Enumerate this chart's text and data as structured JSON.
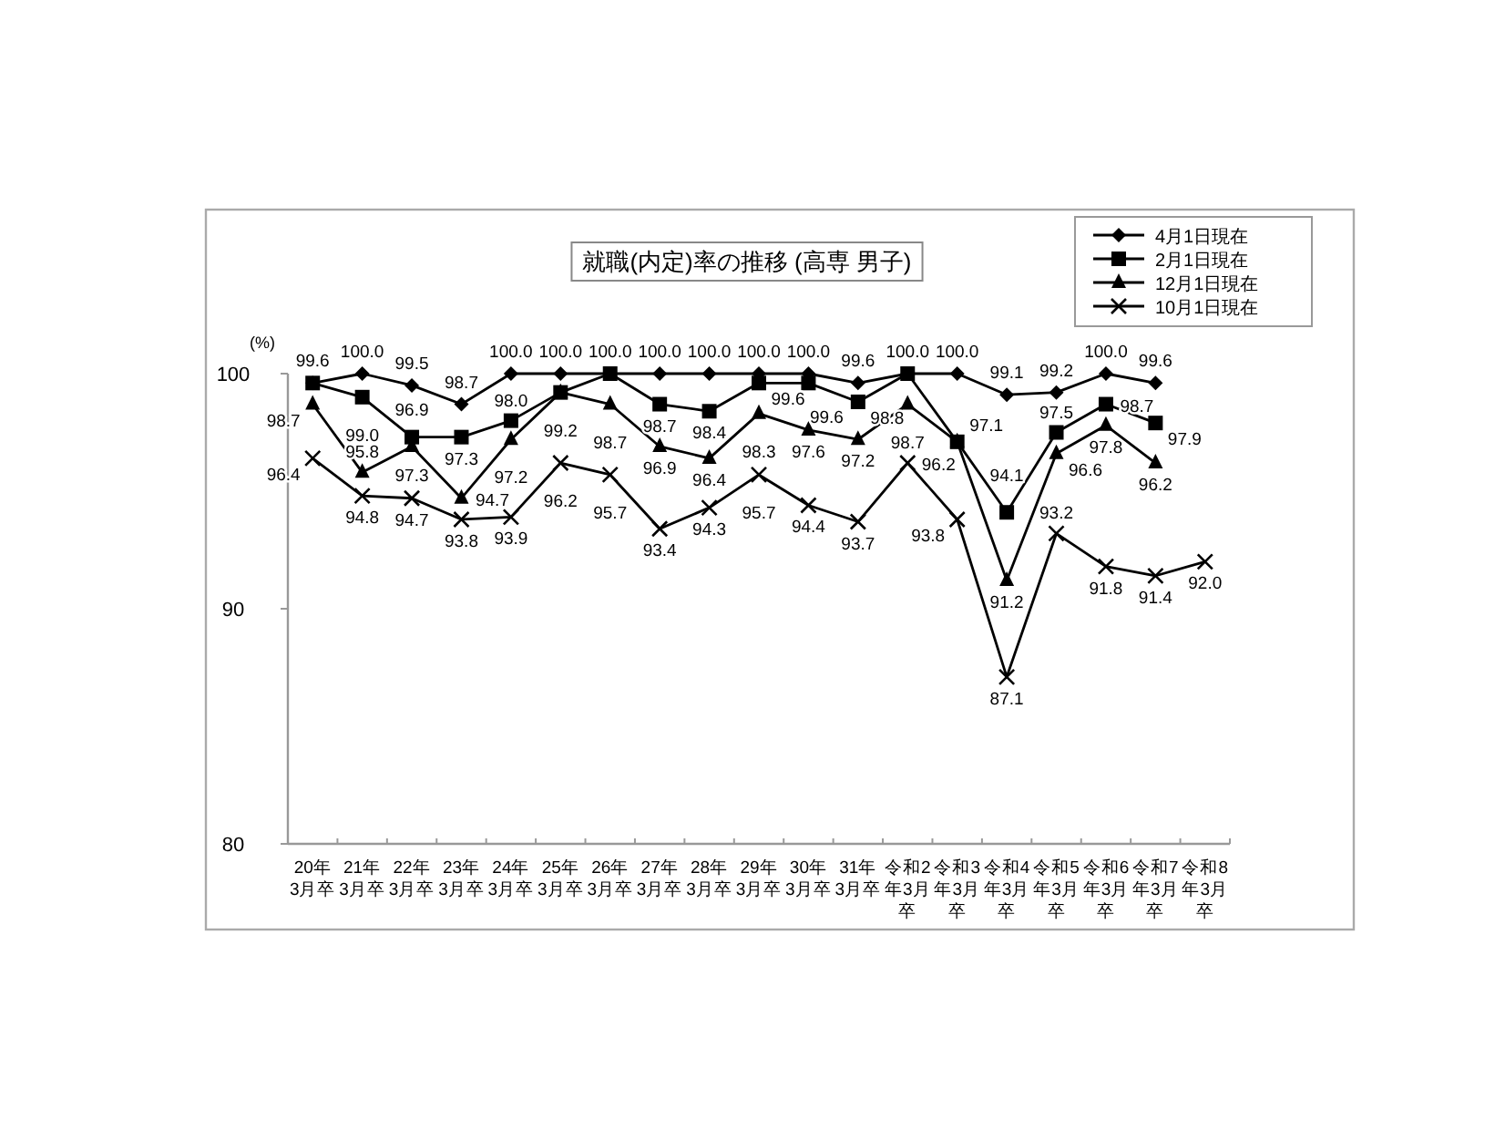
{
  "chart_data": {
    "type": "line",
    "title": "就職(内定)率の推移 (高専 男子)",
    "ylabel": "(%)",
    "categories": [
      "20年3月卒",
      "21年3月卒",
      "22年3月卒",
      "23年3月卒",
      "24年3月卒",
      "25年3月卒",
      "26年3月卒",
      "27年3月卒",
      "28年3月卒",
      "29年3月卒",
      "30年3月卒",
      "31年3月卒",
      "令和2年3月卒",
      "令和3年3月卒",
      "令和4年3月卒",
      "令和5年3月卒",
      "令和6年3月卒",
      "令和7年3月卒",
      "令和8年3月卒"
    ],
    "series": [
      {
        "name": "4月1日現在",
        "color": "#000000",
        "marker": "diamond",
        "values": [
          99.6,
          100.0,
          99.5,
          98.7,
          100.0,
          100.0,
          100.0,
          100.0,
          100.0,
          100.0,
          100.0,
          99.6,
          100.0,
          100.0,
          99.1,
          99.2,
          100.0,
          99.6,
          null
        ],
        "value_labels": [
          "99.6",
          "100.0",
          "99.5",
          "98.7",
          "100.0",
          "100.0",
          "100.0",
          "100.0",
          "100.0",
          "100.0",
          "100.0",
          "99.6",
          "100.0",
          "100.0",
          "99.1",
          "99.2",
          "100.0",
          "99.6",
          null
        ]
      },
      {
        "name": "2月1日現在",
        "color": "#000000",
        "marker": "square",
        "values": [
          99.6,
          99.0,
          97.3,
          97.3,
          98.0,
          99.2,
          100.0,
          98.7,
          98.4,
          99.6,
          99.6,
          98.8,
          100.0,
          97.1,
          94.1,
          97.5,
          98.7,
          97.9,
          null
        ],
        "value_labels": [
          null,
          "99.0",
          "97.3",
          "97.3",
          "98.0",
          "99.2",
          null,
          "98.7",
          "98.4",
          "99.6",
          "99.6",
          "98.8",
          null,
          "97.1",
          "94.1",
          "97.5",
          "98.7",
          "97.9",
          null
        ]
      },
      {
        "name": "12月1日現在",
        "color": "#000000",
        "marker": "triangle",
        "values": [
          98.7,
          95.8,
          96.9,
          94.7,
          97.2,
          99.2,
          98.7,
          96.9,
          96.4,
          98.3,
          97.6,
          97.2,
          98.7,
          97.1,
          91.2,
          96.6,
          97.8,
          96.2,
          null
        ],
        "value_labels": [
          "98.7",
          "95.8",
          "96.9",
          "94.7",
          "97.2",
          null,
          "98.7",
          "96.9",
          "96.4",
          "98.3",
          "97.6",
          "97.2",
          "98.7",
          null,
          "91.2",
          "96.6",
          "97.8",
          "96.2",
          null
        ]
      },
      {
        "name": "10月1日現在",
        "color": "#000000",
        "marker": "cross",
        "values": [
          96.4,
          94.8,
          94.7,
          93.8,
          93.9,
          96.2,
          95.7,
          93.4,
          94.3,
          95.7,
          94.4,
          93.7,
          96.2,
          93.8,
          87.1,
          93.2,
          91.8,
          91.4,
          92.0
        ],
        "value_labels": [
          "96.4",
          "94.8",
          "94.7",
          "93.8",
          "93.9",
          "96.2",
          "95.7",
          "93.4",
          "94.3",
          "95.7",
          "94.4",
          "93.7",
          "96.2",
          "93.8",
          "87.1",
          "93.2",
          "91.8",
          "91.4",
          "92.0"
        ]
      }
    ],
    "ylim": [
      80,
      100
    ],
    "yticks": [
      80,
      90,
      100
    ],
    "grid": false,
    "legend": "top right"
  }
}
